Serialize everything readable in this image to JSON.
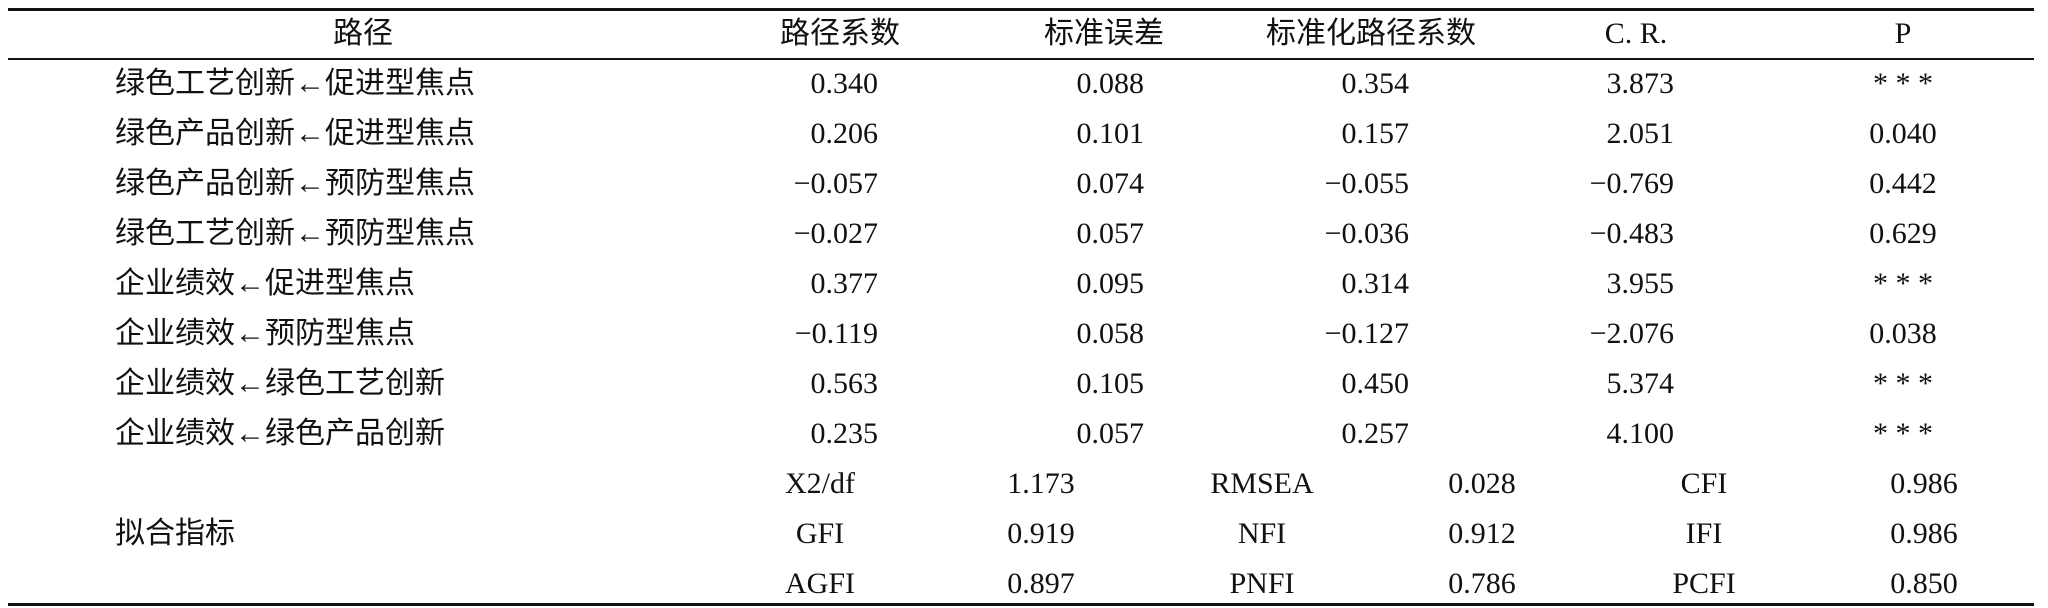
{
  "table": {
    "header": [
      "路径",
      "路径系数",
      "标准误差",
      "标准化路径系数",
      "C. R.",
      "P"
    ],
    "rows": [
      [
        "绿色工艺创新←促进型焦点",
        "0.340",
        "0.088",
        "0.354",
        "3.873",
        "* * *"
      ],
      [
        "绿色产品创新←促进型焦点",
        "0.206",
        "0.101",
        "0.157",
        "2.051",
        "0.040"
      ],
      [
        "绿色产品创新←预防型焦点",
        "−0.057",
        "0.074",
        "−0.055",
        "−0.769",
        "0.442"
      ],
      [
        "绿色工艺创新←预防型焦点",
        "−0.027",
        "0.057",
        "−0.036",
        "−0.483",
        "0.629"
      ],
      [
        "企业绩效←促进型焦点",
        "0.377",
        "0.095",
        "0.314",
        "3.955",
        "* * *"
      ],
      [
        "企业绩效←预防型焦点",
        "−0.119",
        "0.058",
        "−0.127",
        "−2.076",
        "0.038"
      ],
      [
        "企业绩效←绿色工艺创新",
        "0.563",
        "0.105",
        "0.450",
        "5.374",
        "* * *"
      ],
      [
        "企业绩效←绿色产品创新",
        "0.235",
        "0.057",
        "0.257",
        "4.100",
        "* * *"
      ]
    ],
    "fit": {
      "label": "拟合指标",
      "rows": [
        [
          "Χ2/df",
          "1.173",
          "RMSEA",
          "0.028",
          "CFI",
          "0.986"
        ],
        [
          "GFI",
          "0.919",
          "NFI",
          "0.912",
          "IFI",
          "0.986"
        ],
        [
          "AGFI",
          "0.897",
          "PNFI",
          "0.786",
          "PCFI",
          "0.850"
        ]
      ]
    }
  }
}
